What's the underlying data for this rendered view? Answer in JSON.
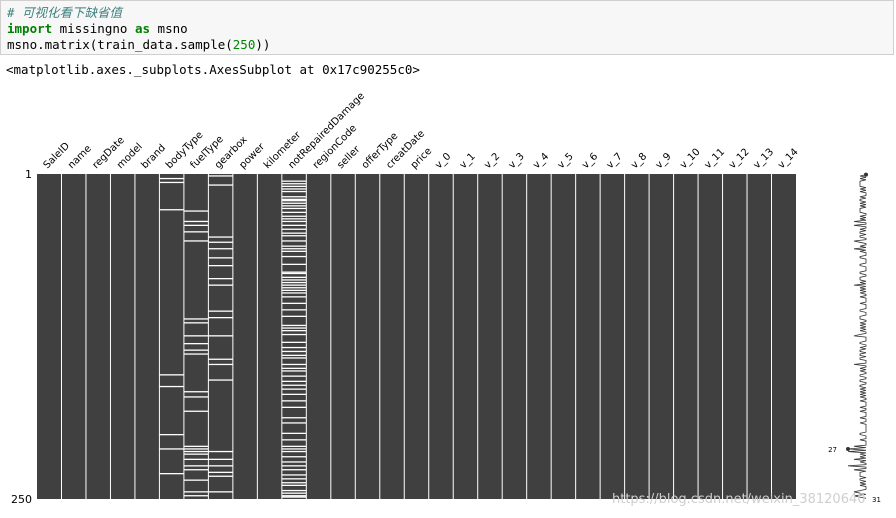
{
  "code": {
    "comment": "# 可视化看下缺省值",
    "line2_kw1": "import",
    "line2_mid": " missingno ",
    "line2_kw2": "as",
    "line2_end": " msno",
    "line3_pre": "msno.matrix(train_data.sample(",
    "line3_num": "250",
    "line3_post": "))"
  },
  "output_text": "<matplotlib.axes._subplots.AxesSubplot at 0x17c90255c0>",
  "chart_data": {
    "type": "heatmap",
    "columns": [
      "SaleID",
      "name",
      "regDate",
      "model",
      "brand",
      "bodyType",
      "fuelType",
      "gearbox",
      "power",
      "kilometer",
      "notRepairedDamage",
      "regionCode",
      "seller",
      "offerType",
      "creatDate",
      "price",
      "v_0",
      "v_1",
      "v_2",
      "v_3",
      "v_4",
      "v_5",
      "v_6",
      "v_7",
      "v_8",
      "v_9",
      "v_10",
      "v_11",
      "v_12",
      "v_13",
      "v_14"
    ],
    "row_labels": [
      "1",
      "250"
    ],
    "n_rows": 250,
    "missing_rows": {
      "bodyType": [
        4,
        7,
        28,
        155,
        164,
        201,
        231,
        212
      ],
      "fuelType": [
        29,
        37,
        40,
        45,
        52,
        112,
        115,
        125,
        131,
        136,
        139,
        168,
        172,
        183,
        210,
        212,
        214,
        216,
        220,
        225,
        228,
        236,
        245,
        248
      ],
      "gearbox": [
        2,
        9,
        49,
        53,
        58,
        65,
        71,
        81,
        86,
        106,
        111,
        125,
        143,
        147,
        159,
        214,
        220,
        225,
        230,
        233,
        245
      ],
      "notRepairedDamage": [
        6,
        8,
        10,
        12,
        14,
        18,
        20,
        21,
        23,
        25,
        27,
        30,
        33,
        35,
        37,
        40,
        43,
        46,
        48,
        52,
        56,
        58,
        60,
        64,
        70,
        76,
        77,
        80,
        82,
        84,
        86,
        88,
        90,
        92,
        95,
        100,
        105,
        110,
        117,
        119,
        121,
        124,
        130,
        134,
        137,
        140,
        142,
        147,
        150,
        152,
        156,
        160,
        163,
        166,
        170,
        175,
        180,
        188,
        192,
        200,
        205,
        210,
        212,
        214,
        218,
        222,
        225,
        228,
        232,
        235,
        238,
        240,
        244,
        246,
        248,
        249
      ]
    },
    "sparkline": {
      "min": 27,
      "max": 31,
      "min_label": "27",
      "max_label": "31"
    },
    "colors": {
      "present": "#404040",
      "missing": "#ffffff",
      "separator": "#ffffff"
    }
  },
  "watermark": "https://blog.csdn.net/weixin_38120640"
}
